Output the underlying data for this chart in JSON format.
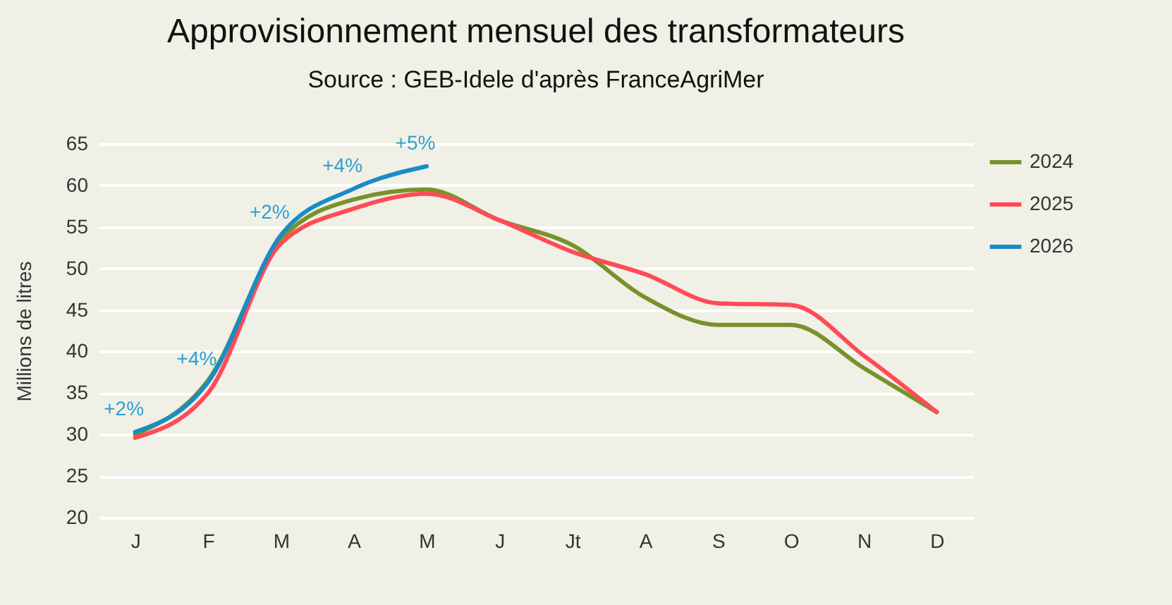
{
  "chart_data": {
    "type": "line",
    "title": "Approvisionnement mensuel des transformateurs",
    "subtitle": "Source : GEB-Idele d'après FranceAgriMer",
    "ylabel": "Millions de litres",
    "categories": [
      "J",
      "F",
      "M",
      "A",
      "M",
      "J",
      "Jt",
      "A",
      "S",
      "O",
      "N",
      "D"
    ],
    "series": [
      {
        "name": "2024",
        "color": "#77922a",
        "values": [
          30.0,
          36.5,
          53.5,
          58.3,
          59.5,
          55.8,
          52.8,
          46.5,
          43.2,
          43.2,
          38.0,
          32.7
        ]
      },
      {
        "name": "2025",
        "color": "#ff4b55",
        "values": [
          29.6,
          35.0,
          53.0,
          57.2,
          59.0,
          55.8,
          52.0,
          49.3,
          45.8,
          45.6,
          39.5,
          32.7
        ]
      },
      {
        "name": "2026",
        "color": "#1a8cc4",
        "values": [
          30.3,
          36.3,
          54.0,
          59.6,
          62.3,
          null,
          null,
          null,
          null,
          null,
          null,
          null
        ]
      }
    ],
    "annotations": [
      "+2%",
      "+4%",
      "+2%",
      "+4%",
      "+5%"
    ],
    "ylim": [
      20,
      65
    ],
    "yticks": [
      20,
      25,
      30,
      35,
      40,
      45,
      50,
      55,
      60,
      65
    ],
    "grid": "y",
    "legend": "right",
    "line_style": "solid",
    "marker": "none"
  }
}
